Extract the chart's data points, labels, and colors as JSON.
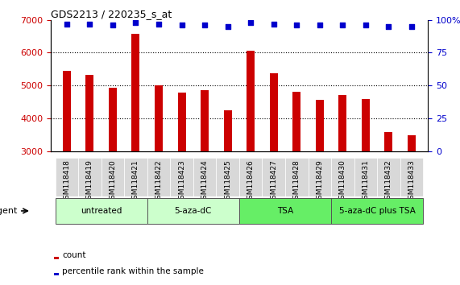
{
  "title": "GDS2213 / 220235_s_at",
  "samples": [
    "GSM118418",
    "GSM118419",
    "GSM118420",
    "GSM118421",
    "GSM118422",
    "GSM118423",
    "GSM118424",
    "GSM118425",
    "GSM118426",
    "GSM118427",
    "GSM118428",
    "GSM118429",
    "GSM118430",
    "GSM118431",
    "GSM118432",
    "GSM118433"
  ],
  "counts": [
    5450,
    5330,
    4920,
    6580,
    5000,
    4780,
    4850,
    4250,
    6050,
    5380,
    4820,
    4560,
    4700,
    4590,
    3580,
    3480
  ],
  "percentile_ranks": [
    97,
    97,
    96,
    98,
    97,
    96,
    96,
    95,
    98,
    97,
    96,
    96,
    96,
    96,
    95,
    95
  ],
  "groups": [
    {
      "label": "untreated",
      "indices": [
        0,
        1,
        2,
        3
      ],
      "color": "#ccffcc"
    },
    {
      "label": "5-aza-dC",
      "indices": [
        4,
        5,
        6,
        7
      ],
      "color": "#ccffcc"
    },
    {
      "label": "TSA",
      "indices": [
        8,
        9,
        10,
        11
      ],
      "color": "#66ee66"
    },
    {
      "label": "5-aza-dC plus TSA",
      "indices": [
        12,
        13,
        14,
        15
      ],
      "color": "#66ee66"
    }
  ],
  "ylim_left": [
    3000,
    7000
  ],
  "ylim_right": [
    0,
    100
  ],
  "bar_color": "#cc0000",
  "dot_color": "#0000cc",
  "left_tick_color": "#cc0000",
  "right_tick_color": "#0000cc",
  "yticks_left": [
    3000,
    4000,
    5000,
    6000,
    7000
  ],
  "yticks_right": [
    0,
    25,
    50,
    75,
    100
  ],
  "agent_label": "agent",
  "legend_count_label": "count",
  "legend_pct_label": "percentile rank within the sample",
  "xticklabel_bg": "#d8d8d8",
  "bar_width": 0.35
}
